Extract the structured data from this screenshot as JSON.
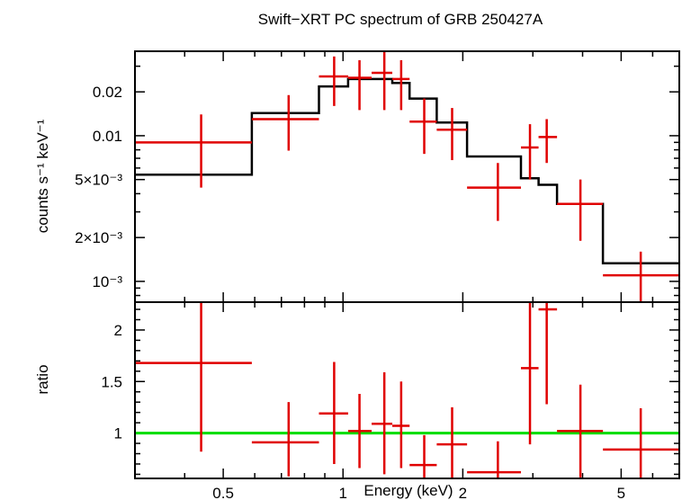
{
  "chart_data": [
    {
      "type": "scatter",
      "panel": "spectrum",
      "title": "Swift−XRT PC spectrum of GRB 250427A",
      "ylabel": "counts s⁻¹ keV⁻¹",
      "xlabel": "",
      "xscale": "log",
      "yscale": "log",
      "xlim": [
        0.3,
        7.0
      ],
      "ylim": [
        0.00072,
        0.038
      ],
      "yticks": [
        {
          "value": 0.02,
          "label": "0.02"
        },
        {
          "value": 0.01,
          "label": "0.01"
        },
        {
          "value": 0.005,
          "label": "5×10⁻³"
        },
        {
          "value": 0.002,
          "label": "2×10⁻³"
        },
        {
          "value": 0.001,
          "label": "10⁻³"
        }
      ],
      "data": [
        {
          "x": 0.44,
          "xlo": 0.3,
          "xhi": 0.59,
          "y": 0.009,
          "ylo": 0.0044,
          "yhi": 0.014
        },
        {
          "x": 0.73,
          "xlo": 0.59,
          "xhi": 0.87,
          "y": 0.013,
          "ylo": 0.0079,
          "yhi": 0.019
        },
        {
          "x": 0.95,
          "xlo": 0.87,
          "xhi": 1.03,
          "y": 0.0255,
          "ylo": 0.016,
          "yhi": 0.035
        },
        {
          "x": 1.1,
          "xlo": 1.03,
          "xhi": 1.18,
          "y": 0.025,
          "ylo": 0.015,
          "yhi": 0.033
        },
        {
          "x": 1.27,
          "xlo": 1.18,
          "xhi": 1.33,
          "y": 0.027,
          "ylo": 0.015,
          "yhi": 0.04
        },
        {
          "x": 1.4,
          "xlo": 1.33,
          "xhi": 1.47,
          "y": 0.0245,
          "ylo": 0.015,
          "yhi": 0.033
        },
        {
          "x": 1.6,
          "xlo": 1.47,
          "xhi": 1.72,
          "y": 0.0125,
          "ylo": 0.0075,
          "yhi": 0.018
        },
        {
          "x": 1.88,
          "xlo": 1.72,
          "xhi": 2.05,
          "y": 0.011,
          "ylo": 0.0068,
          "yhi": 0.0155
        },
        {
          "x": 2.45,
          "xlo": 2.05,
          "xhi": 2.8,
          "y": 0.0044,
          "ylo": 0.0026,
          "yhi": 0.0065
        },
        {
          "x": 2.95,
          "xlo": 2.8,
          "xhi": 3.1,
          "y": 0.0083,
          "ylo": 0.005,
          "yhi": 0.012
        },
        {
          "x": 3.25,
          "xlo": 3.1,
          "xhi": 3.45,
          "y": 0.0098,
          "ylo": 0.0065,
          "yhi": 0.013
        },
        {
          "x": 3.95,
          "xlo": 3.45,
          "xhi": 4.5,
          "y": 0.0034,
          "ylo": 0.0019,
          "yhi": 0.005
        },
        {
          "x": 5.6,
          "xlo": 4.5,
          "xhi": 7.0,
          "y": 0.0011,
          "ylo": 0.00055,
          "yhi": 0.0016
        }
      ],
      "model": [
        {
          "xlo": 0.3,
          "xhi": 0.59,
          "y": 0.0054
        },
        {
          "xlo": 0.59,
          "xhi": 0.87,
          "y": 0.0143
        },
        {
          "xlo": 0.87,
          "xhi": 1.03,
          "y": 0.0218
        },
        {
          "xlo": 1.03,
          "xhi": 1.33,
          "y": 0.0245
        },
        {
          "xlo": 1.33,
          "xhi": 1.47,
          "y": 0.023
        },
        {
          "xlo": 1.47,
          "xhi": 1.72,
          "y": 0.018
        },
        {
          "xlo": 1.72,
          "xhi": 2.05,
          "y": 0.0123
        },
        {
          "xlo": 2.05,
          "xhi": 2.8,
          "y": 0.0072
        },
        {
          "xlo": 2.8,
          "xhi": 3.1,
          "y": 0.0051
        },
        {
          "xlo": 3.1,
          "xhi": 3.45,
          "y": 0.0046
        },
        {
          "xlo": 3.45,
          "xhi": 4.5,
          "y": 0.0034
        },
        {
          "xlo": 4.5,
          "xhi": 7.0,
          "y": 0.00133
        }
      ]
    },
    {
      "type": "scatter",
      "panel": "ratio",
      "ylabel": "ratio",
      "xlabel": "Energy (keV)",
      "xscale": "log",
      "yscale": "linear",
      "xlim": [
        0.3,
        7.0
      ],
      "ylim": [
        0.56,
        2.27
      ],
      "xticks": [
        {
          "value": 0.5,
          "label": "0.5"
        },
        {
          "value": 1,
          "label": "1"
        },
        {
          "value": 2,
          "label": "2"
        },
        {
          "value": 5,
          "label": "5"
        }
      ],
      "yticks": [
        {
          "value": 1,
          "label": "1"
        },
        {
          "value": 1.5,
          "label": "1.5"
        },
        {
          "value": 2,
          "label": "2"
        }
      ],
      "reference_line": 1,
      "data": [
        {
          "x": 0.44,
          "xlo": 0.3,
          "xhi": 0.59,
          "y": 1.68,
          "ylo": 0.82,
          "yhi": 2.27
        },
        {
          "x": 0.73,
          "xlo": 0.59,
          "xhi": 0.87,
          "y": 0.91,
          "ylo": 0.58,
          "yhi": 1.3
        },
        {
          "x": 0.95,
          "xlo": 0.87,
          "xhi": 1.03,
          "y": 1.19,
          "ylo": 0.7,
          "yhi": 1.69
        },
        {
          "x": 1.1,
          "xlo": 1.03,
          "xhi": 1.18,
          "y": 1.02,
          "ylo": 0.66,
          "yhi": 1.38
        },
        {
          "x": 1.27,
          "xlo": 1.18,
          "xhi": 1.33,
          "y": 1.09,
          "ylo": 0.6,
          "yhi": 1.59
        },
        {
          "x": 1.4,
          "xlo": 1.33,
          "xhi": 1.47,
          "y": 1.07,
          "ylo": 0.66,
          "yhi": 1.5
        },
        {
          "x": 1.6,
          "xlo": 1.47,
          "xhi": 1.72,
          "y": 0.69,
          "ylo": 0.56,
          "yhi": 0.98
        },
        {
          "x": 1.88,
          "xlo": 1.72,
          "xhi": 2.05,
          "y": 0.89,
          "ylo": 0.56,
          "yhi": 1.25
        },
        {
          "x": 2.45,
          "xlo": 2.05,
          "xhi": 2.8,
          "y": 0.62,
          "ylo": 0.56,
          "yhi": 0.92
        },
        {
          "x": 2.95,
          "xlo": 2.8,
          "xhi": 3.1,
          "y": 1.63,
          "ylo": 0.89,
          "yhi": 2.27
        },
        {
          "x": 3.25,
          "xlo": 3.1,
          "xhi": 3.45,
          "y": 2.2,
          "ylo": 1.28,
          "yhi": 2.27
        },
        {
          "x": 3.95,
          "xlo": 3.45,
          "xhi": 4.5,
          "y": 1.02,
          "ylo": 0.57,
          "yhi": 1.47
        },
        {
          "x": 5.6,
          "xlo": 4.5,
          "xhi": 7.0,
          "y": 0.84,
          "ylo": 0.56,
          "yhi": 1.24
        }
      ]
    }
  ]
}
